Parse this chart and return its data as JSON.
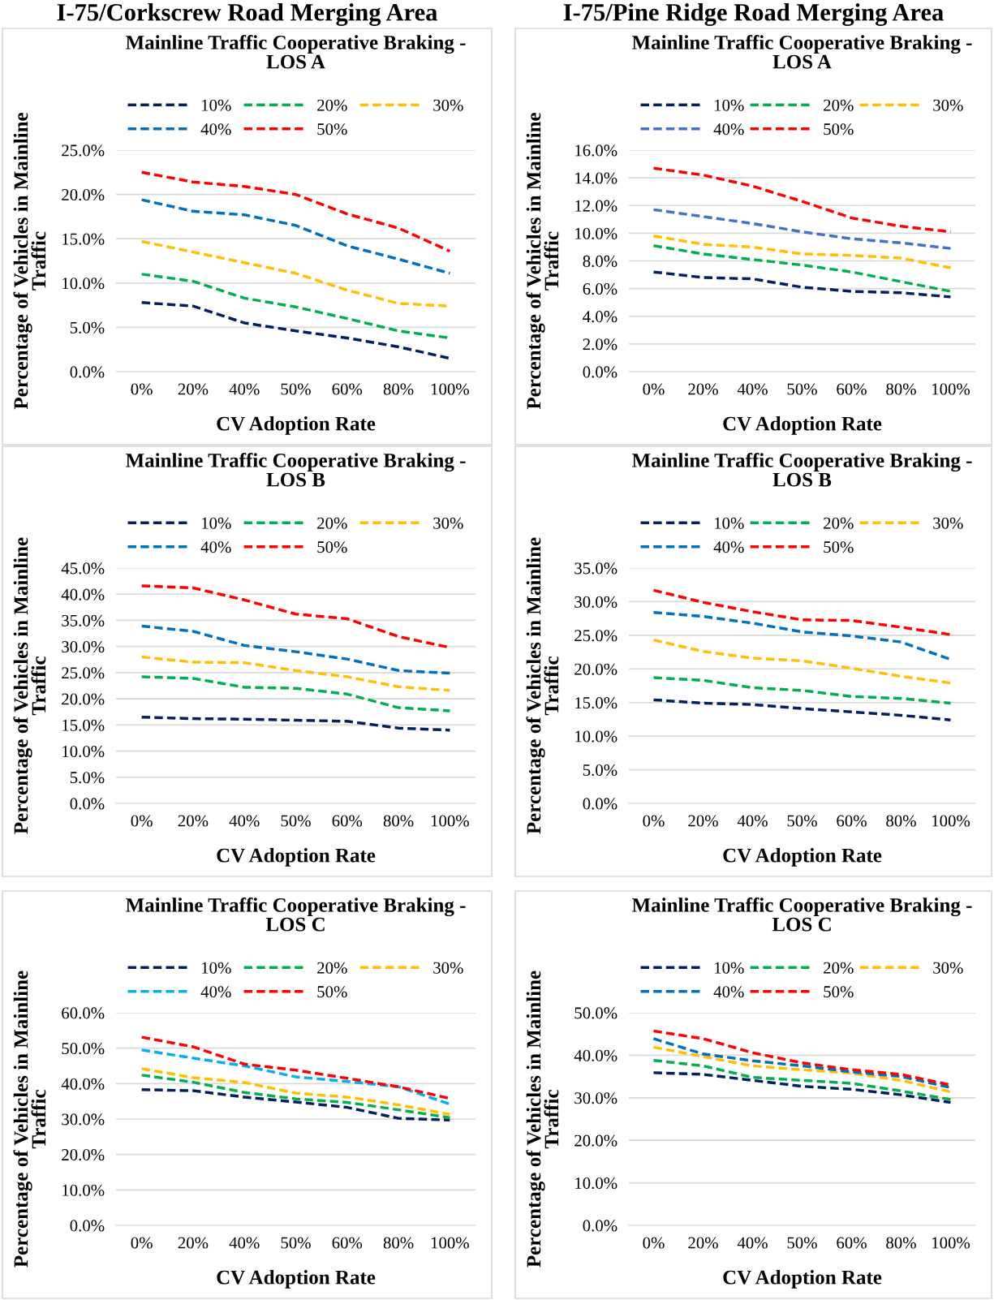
{
  "chart_data": [
    {
      "type": "line",
      "title": "Mainline Traffic Cooperative Braking -\nLOS A",
      "annotations": [
        "I-75/Corkscrew Road Merging Area"
      ],
      "xlabel": "CV Adoption Rate",
      "ylabel": "Percentage of Vehicles in Mainline\nTraffic",
      "categories": [
        "0%",
        "20%",
        "40%",
        "50%",
        "60%",
        "80%",
        "100%"
      ],
      "line_style": "dashed",
      "marker": "none",
      "grid": "y",
      "legend": "top",
      "ylim": [
        0,
        25
      ],
      "yticks": [
        {
          "value": 0,
          "label": "0.0%"
        },
        {
          "value": 5,
          "label": "5.0%"
        },
        {
          "value": 10,
          "label": "10.0%"
        },
        {
          "value": 15,
          "label": "15.0%"
        },
        {
          "value": 20,
          "label": "20.0%"
        },
        {
          "value": 25,
          "label": "25.0%"
        }
      ],
      "series": [
        {
          "name": "10%",
          "color": "#002060",
          "values": [
            7.8,
            7.4,
            5.5,
            4.6,
            3.8,
            2.8,
            1.5
          ]
        },
        {
          "name": "20%",
          "color": "#00b050",
          "values": [
            11.0,
            10.2,
            8.3,
            7.3,
            6.0,
            4.6,
            3.8
          ]
        },
        {
          "name": "30%",
          "color": "#ffc000",
          "values": [
            14.7,
            13.5,
            12.3,
            11.1,
            9.2,
            7.7,
            7.4
          ]
        },
        {
          "name": "40%",
          "color": "#0070c0",
          "values": [
            19.4,
            18.1,
            17.7,
            16.5,
            14.2,
            12.7,
            11.1
          ]
        },
        {
          "name": "50%",
          "color": "#ff0000",
          "values": [
            22.5,
            21.4,
            20.9,
            20.0,
            17.8,
            16.2,
            13.6
          ]
        }
      ]
    },
    {
      "type": "line",
      "title": "Mainline Traffic Cooperative Braking -\nLOS A",
      "annotations": [
        "I-75/Pine Ridge Road Merging Area"
      ],
      "xlabel": "CV Adoption Rate",
      "ylabel": "Percentage of Vehicles in Mainline\nTraffic",
      "categories": [
        "0%",
        "20%",
        "40%",
        "50%",
        "60%",
        "80%",
        "100%"
      ],
      "line_style": "dashed",
      "marker": "none",
      "grid": "y",
      "legend": "top",
      "ylim": [
        0,
        16
      ],
      "yticks": [
        {
          "value": 0,
          "label": "0.0%"
        },
        {
          "value": 2,
          "label": "2.0%"
        },
        {
          "value": 4,
          "label": "4.0%"
        },
        {
          "value": 6,
          "label": "6.0%"
        },
        {
          "value": 8,
          "label": "8.0%"
        },
        {
          "value": 10,
          "label": "10.0%"
        },
        {
          "value": 12,
          "label": "12.0%"
        },
        {
          "value": 14,
          "label": "14.0%"
        },
        {
          "value": 16,
          "label": "16.0%"
        }
      ],
      "series": [
        {
          "name": "10%",
          "color": "#002060",
          "values": [
            7.2,
            6.8,
            6.7,
            6.1,
            5.8,
            5.7,
            5.4
          ]
        },
        {
          "name": "20%",
          "color": "#00b050",
          "values": [
            9.1,
            8.5,
            8.1,
            7.7,
            7.2,
            6.5,
            5.8
          ]
        },
        {
          "name": "30%",
          "color": "#ffc000",
          "values": [
            9.8,
            9.2,
            9.0,
            8.5,
            8.4,
            8.2,
            7.5
          ]
        },
        {
          "name": "40%",
          "color": "#4472c4",
          "values": [
            11.7,
            11.2,
            10.7,
            10.1,
            9.6,
            9.3,
            8.9
          ]
        },
        {
          "name": "50%",
          "color": "#ff0000",
          "values": [
            14.7,
            14.2,
            13.4,
            12.3,
            11.1,
            10.5,
            10.1
          ]
        }
      ]
    },
    {
      "type": "line",
      "title": "Mainline Traffic Cooperative Braking -\nLOS B",
      "xlabel": "CV Adoption Rate",
      "ylabel": "Percentage of Vehicles in Mainline\nTraffic",
      "categories": [
        "0%",
        "20%",
        "40%",
        "50%",
        "60%",
        "80%",
        "100%"
      ],
      "line_style": "dashed",
      "marker": "none",
      "grid": "y",
      "legend": "top",
      "ylim": [
        0,
        45
      ],
      "yticks": [
        {
          "value": 0,
          "label": "0.0%"
        },
        {
          "value": 5,
          "label": "5.0%"
        },
        {
          "value": 10,
          "label": "10.0%"
        },
        {
          "value": 15,
          "label": "15.0%"
        },
        {
          "value": 20,
          "label": "20.0%"
        },
        {
          "value": 25,
          "label": "25.0%"
        },
        {
          "value": 30,
          "label": "30.0%"
        },
        {
          "value": 35,
          "label": "35.0%"
        },
        {
          "value": 40,
          "label": "40.0%"
        },
        {
          "value": 45,
          "label": "45.0%"
        }
      ],
      "series": [
        {
          "name": "10%",
          "color": "#002060",
          "values": [
            16.5,
            16.2,
            16.1,
            15.9,
            15.7,
            14.4,
            14.0
          ]
        },
        {
          "name": "20%",
          "color": "#00b050",
          "values": [
            24.2,
            23.9,
            22.2,
            22.0,
            20.9,
            18.3,
            17.7
          ]
        },
        {
          "name": "30%",
          "color": "#ffc000",
          "values": [
            28.0,
            27.0,
            26.9,
            25.4,
            24.2,
            22.3,
            21.6
          ]
        },
        {
          "name": "40%",
          "color": "#0070c0",
          "values": [
            33.9,
            32.9,
            30.2,
            29.0,
            27.6,
            25.4,
            24.9
          ]
        },
        {
          "name": "50%",
          "color": "#ff0000",
          "values": [
            41.6,
            41.2,
            38.9,
            36.2,
            35.3,
            31.9,
            29.8
          ]
        }
      ]
    },
    {
      "type": "line",
      "title": "Mainline Traffic Cooperative Braking -\nLOS B",
      "xlabel": "CV Adoption Rate",
      "ylabel": "Percentage of Vehicles in Mainline\nTraffic",
      "categories": [
        "0%",
        "20%",
        "40%",
        "50%",
        "60%",
        "80%",
        "100%"
      ],
      "line_style": "dashed",
      "marker": "none",
      "grid": "y",
      "legend": "top",
      "ylim": [
        0,
        35
      ],
      "yticks": [
        {
          "value": 0,
          "label": "0.0%"
        },
        {
          "value": 5,
          "label": "5.0%"
        },
        {
          "value": 10,
          "label": "10.0%"
        },
        {
          "value": 15,
          "label": "15.0%"
        },
        {
          "value": 20,
          "label": "20.0%"
        },
        {
          "value": 25,
          "label": "25.0%"
        },
        {
          "value": 30,
          "label": "30.0%"
        },
        {
          "value": 35,
          "label": "35.0%"
        }
      ],
      "series": [
        {
          "name": "10%",
          "color": "#002060",
          "values": [
            15.4,
            14.9,
            14.7,
            14.1,
            13.6,
            13.1,
            12.4
          ]
        },
        {
          "name": "20%",
          "color": "#00b050",
          "values": [
            18.7,
            18.3,
            17.2,
            16.8,
            15.9,
            15.6,
            14.9
          ]
        },
        {
          "name": "30%",
          "color": "#ffc000",
          "values": [
            24.3,
            22.6,
            21.6,
            21.2,
            20.1,
            18.9,
            17.9
          ]
        },
        {
          "name": "40%",
          "color": "#0070c0",
          "values": [
            28.4,
            27.8,
            26.8,
            25.5,
            24.9,
            24.0,
            21.4
          ]
        },
        {
          "name": "50%",
          "color": "#ff0000",
          "values": [
            31.7,
            29.9,
            28.5,
            27.3,
            27.2,
            26.2,
            25.1
          ]
        }
      ]
    },
    {
      "type": "line",
      "title": "Mainline Traffic Cooperative Braking -\nLOS C",
      "xlabel": "CV Adoption Rate",
      "ylabel": "Percentage of Vehicles in Mainline\nTraffic",
      "categories": [
        "0%",
        "20%",
        "40%",
        "50%",
        "60%",
        "80%",
        "100%"
      ],
      "line_style": "dashed",
      "marker": "none",
      "grid": "y",
      "legend": "top",
      "ylim": [
        0,
        60
      ],
      "yticks": [
        {
          "value": 0,
          "label": "0.0%"
        },
        {
          "value": 10,
          "label": "10.0%"
        },
        {
          "value": 20,
          "label": "20.0%"
        },
        {
          "value": 30,
          "label": "30.0%"
        },
        {
          "value": 40,
          "label": "40.0%"
        },
        {
          "value": 50,
          "label": "50.0%"
        },
        {
          "value": 60,
          "label": "60.0%"
        }
      ],
      "series": [
        {
          "name": "10%",
          "color": "#002060",
          "values": [
            38.3,
            38.0,
            36.2,
            34.8,
            33.3,
            30.2,
            29.7
          ]
        },
        {
          "name": "20%",
          "color": "#00b050",
          "values": [
            42.4,
            40.4,
            37.5,
            35.7,
            34.7,
            32.6,
            30.4
          ]
        },
        {
          "name": "30%",
          "color": "#ffc000",
          "values": [
            44.2,
            41.7,
            40.3,
            37.3,
            36.2,
            34.0,
            31.3
          ]
        },
        {
          "name": "40%",
          "color": "#00b0f0",
          "values": [
            49.5,
            47.2,
            45.0,
            41.9,
            40.6,
            39.1,
            34.2
          ]
        },
        {
          "name": "50%",
          "color": "#ff0000",
          "values": [
            53.1,
            50.4,
            45.5,
            43.8,
            41.5,
            39.1,
            35.8
          ]
        }
      ]
    },
    {
      "type": "line",
      "title": "Mainline Traffic Cooperative Braking -\nLOS C",
      "xlabel": "CV Adoption Rate",
      "ylabel": "Percentage of Vehicles in Mainline\nTraffic",
      "categories": [
        "0%",
        "20%",
        "40%",
        "50%",
        "60%",
        "80%",
        "100%"
      ],
      "line_style": "dashed",
      "marker": "none",
      "grid": "y",
      "legend": "top",
      "ylim": [
        0,
        50
      ],
      "yticks": [
        {
          "value": 0,
          "label": "0.0%"
        },
        {
          "value": 10,
          "label": "10.0%"
        },
        {
          "value": 20,
          "label": "20.0%"
        },
        {
          "value": 30,
          "label": "30.0%"
        },
        {
          "value": 40,
          "label": "40.0%"
        },
        {
          "value": 50,
          "label": "50.0%"
        }
      ],
      "series": [
        {
          "name": "10%",
          "color": "#002060",
          "values": [
            35.9,
            35.5,
            34.1,
            32.7,
            32.0,
            30.7,
            28.9
          ]
        },
        {
          "name": "20%",
          "color": "#00b050",
          "values": [
            38.8,
            37.5,
            34.8,
            34.1,
            33.4,
            31.6,
            29.6
          ]
        },
        {
          "name": "30%",
          "color": "#ffc000",
          "values": [
            41.9,
            39.7,
            37.5,
            36.6,
            35.8,
            34.1,
            31.4
          ]
        },
        {
          "name": "40%",
          "color": "#0070c0",
          "values": [
            43.9,
            40.3,
            38.7,
            37.5,
            36.1,
            35.0,
            32.4
          ]
        },
        {
          "name": "50%",
          "color": "#ff0000",
          "values": [
            45.7,
            43.9,
            40.6,
            38.2,
            36.6,
            35.5,
            33.0
          ]
        }
      ]
    }
  ]
}
